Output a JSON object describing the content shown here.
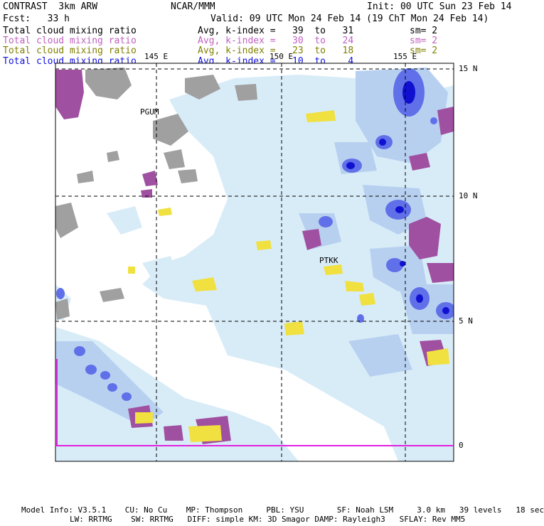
{
  "header": {
    "model_name": "CONTRAST  3km ARW",
    "org": "NCAR/MMM",
    "init": "Init: 00 UTC Sun 23 Feb 14",
    "fcst": "Fcst:   33 h",
    "valid": "Valid: 09 UTC Mon 24 Feb 14 (19 ChT Mon 24 Feb 14)"
  },
  "legend": [
    {
      "field": "Total cloud mixing ratio",
      "range": "Avg, k-index =   39  to   31",
      "sm": "sm= 2",
      "color": "#000000"
    },
    {
      "field": "Total cloud mixing ratio",
      "range": "Avg, k-index =   30  to   24",
      "sm": "sm= 2",
      "color": "#c060c0"
    },
    {
      "field": "Total cloud mixing ratio",
      "range": "Avg, k-index =   23  to   18",
      "sm": "sm= 2",
      "color": "#808000"
    },
    {
      "field": "Total cloud mixing ratio",
      "range": "Avg, k-index =   10  to    4",
      "sm": "",
      "color": "#1010e0"
    }
  ],
  "map": {
    "lon_labels": [
      "145 E",
      "150 E",
      "155 E"
    ],
    "lat_labels": [
      "15 N",
      "10 N",
      "5 N",
      "0"
    ],
    "stations": [
      "PGUM",
      "PTKK"
    ],
    "colors": {
      "land": "#a0a0a0",
      "light_cloud": "#d8ecf8",
      "mid_cloud": "#b8d0f0",
      "deep_cloud": "#6070e8",
      "core_cloud": "#1010d0",
      "purple": "#a050a0",
      "yellow": "#f0e040",
      "frame_marker": "#e020e0"
    }
  },
  "footer": {
    "line1": "Model Info: V3.5.1    CU: No Cu    MP: Thompson     PBL: YSU       SF: Noah LSM     3.0 km   39 levels   18 sec",
    "line2": "LW: RRTMG    SW: RRTMG   DIFF: simple KM: 3D Smagor DAMP: Rayleigh3   SFLAY: Rev MM5"
  }
}
